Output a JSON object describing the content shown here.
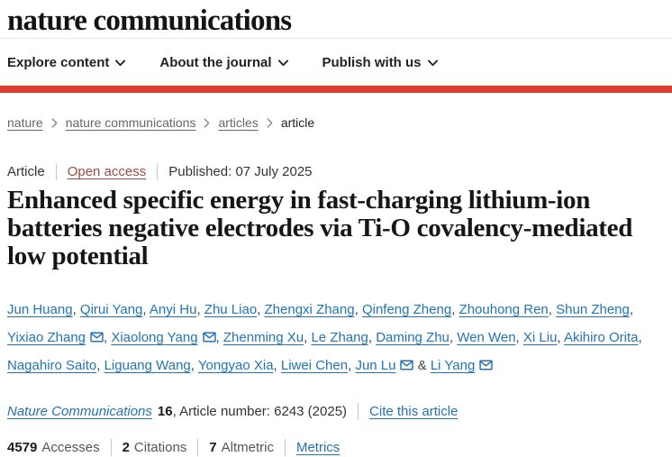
{
  "colors": {
    "brand_red": "#e23c2d",
    "link_blue": "#2274b5",
    "open_access_red": "#9e4b40"
  },
  "header": {
    "logo": "nature communications",
    "nav": [
      {
        "label": "Explore content"
      },
      {
        "label": "About the journal"
      },
      {
        "label": "Publish with us"
      }
    ]
  },
  "breadcrumb": {
    "links": [
      "nature",
      "nature communications",
      "articles"
    ],
    "current": "article"
  },
  "article": {
    "meta": {
      "type": "Article",
      "access": "Open access",
      "published": "Published: 07 July 2025"
    },
    "title": "Enhanced specific energy in fast-charging lithium-ion batteries negative electrodes via Ti-O covalency-mediated low potential",
    "author_separator": ", ",
    "author_separator_last": " & ",
    "authors": [
      {
        "name": "Jun Huang",
        "email": false
      },
      {
        "name": "Qirui Yang",
        "email": false
      },
      {
        "name": "Anyi Hu",
        "email": false
      },
      {
        "name": "Zhu Liao",
        "email": false
      },
      {
        "name": "Zhengxi Zhang",
        "email": false
      },
      {
        "name": "Qinfeng Zheng",
        "email": false
      },
      {
        "name": "Zhouhong Ren",
        "email": false
      },
      {
        "name": "Shun Zheng",
        "email": false
      },
      {
        "name": "Yixiao Zhang",
        "email": true
      },
      {
        "name": "Xiaolong Yang",
        "email": true
      },
      {
        "name": "Zhenming Xu",
        "email": false
      },
      {
        "name": "Le Zhang",
        "email": false
      },
      {
        "name": "Daming Zhu",
        "email": false
      },
      {
        "name": "Wen Wen",
        "email": false
      },
      {
        "name": "Xi Liu",
        "email": false
      },
      {
        "name": "Akihiro Orita",
        "email": false
      },
      {
        "name": "Nagahiro Saito",
        "email": false
      },
      {
        "name": "Liguang Wang",
        "email": false
      },
      {
        "name": "Yongyao Xia",
        "email": false
      },
      {
        "name": "Liwei Chen",
        "email": false
      },
      {
        "name": "Jun Lu",
        "email": true
      },
      {
        "name": "Li Yang",
        "email": true
      }
    ],
    "journal": {
      "name": "Nature Communications",
      "volume": "16",
      "article_number_text": ", Article number: 6243 (2025)",
      "cite_link": "Cite this article"
    },
    "metrics": {
      "accesses_value": "4579",
      "accesses_label": "Accesses",
      "citations_value": "2",
      "citations_label": "Citations",
      "altmetric_value": "7",
      "altmetric_label": "Altmetric",
      "metrics_link": "Metrics"
    }
  }
}
